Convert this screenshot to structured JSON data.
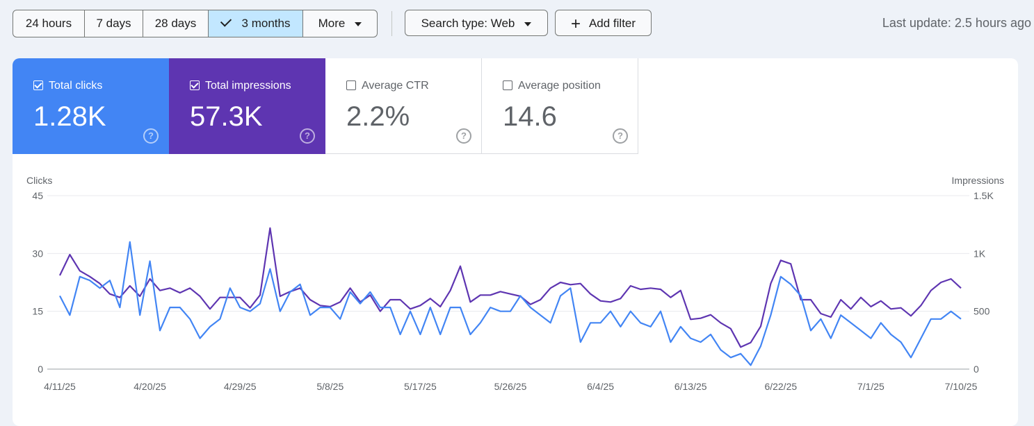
{
  "filters": {
    "ranges": [
      {
        "label": "24 hours",
        "selected": false
      },
      {
        "label": "7 days",
        "selected": false
      },
      {
        "label": "28 days",
        "selected": false
      },
      {
        "label": "3 months",
        "selected": true
      },
      {
        "label": "More",
        "selected": false
      }
    ],
    "search_type": "Search type: Web",
    "add_filter": "Add filter",
    "last_update": "Last update: 2.5 hours ago"
  },
  "metrics": [
    {
      "label": "Total clicks",
      "value": "1.28K",
      "checked": true,
      "color": "#4285f4"
    },
    {
      "label": "Total impressions",
      "value": "57.3K",
      "checked": true,
      "color": "#5e35b1"
    },
    {
      "label": "Average CTR",
      "value": "2.2%",
      "checked": false
    },
    {
      "label": "Average position",
      "value": "14.6",
      "checked": false
    }
  ],
  "chart_data": {
    "type": "line",
    "left_axis_title": "Clicks",
    "right_axis_title": "Impressions",
    "left_ticks": [
      "45",
      "30",
      "15",
      "0"
    ],
    "right_ticks": [
      "1.5K",
      "1K",
      "500",
      "0"
    ],
    "ylim_left": [
      0,
      45
    ],
    "ylim_right": [
      0,
      1500
    ],
    "x_tick_labels": [
      "4/11/25",
      "4/20/25",
      "4/29/25",
      "5/8/25",
      "5/17/25",
      "5/26/25",
      "6/4/25",
      "6/13/25",
      "6/22/25",
      "7/1/25",
      "7/10/25"
    ],
    "series": [
      {
        "name": "Clicks",
        "axis": "left",
        "color": "#4285f4",
        "values": [
          19,
          14,
          24,
          23,
          21,
          23,
          16,
          33,
          14,
          28,
          10,
          16,
          16,
          13,
          8,
          11,
          13,
          21,
          16,
          15,
          17,
          26,
          15,
          20,
          22,
          14,
          16,
          16,
          13,
          20,
          17,
          20,
          16,
          16,
          9,
          15,
          9,
          16,
          9,
          16,
          16,
          9,
          12,
          16,
          15,
          15,
          19,
          16,
          14,
          12,
          19,
          21,
          7,
          12,
          12,
          15,
          11,
          15,
          12,
          11,
          15,
          7,
          11,
          8,
          7,
          9,
          5,
          3,
          4,
          1,
          6,
          14,
          24,
          22,
          19,
          10,
          13,
          8,
          14,
          12,
          10,
          8,
          12,
          9,
          7,
          3,
          8,
          13,
          13,
          15,
          13
        ]
      },
      {
        "name": "Impressions",
        "axis": "right",
        "color": "#5e35b1",
        "values": [
          810,
          990,
          850,
          800,
          740,
          650,
          620,
          720,
          630,
          780,
          680,
          700,
          660,
          700,
          630,
          520,
          620,
          620,
          620,
          530,
          640,
          1220,
          630,
          670,
          700,
          600,
          550,
          540,
          580,
          700,
          580,
          640,
          500,
          600,
          600,
          520,
          550,
          610,
          540,
          680,
          890,
          580,
          640,
          640,
          670,
          650,
          630,
          560,
          600,
          700,
          750,
          730,
          740,
          650,
          590,
          580,
          610,
          720,
          690,
          700,
          690,
          620,
          680,
          430,
          440,
          470,
          400,
          350,
          190,
          230,
          370,
          740,
          940,
          910,
          600,
          600,
          480,
          450,
          600,
          520,
          620,
          540,
          590,
          520,
          530,
          460,
          550,
          680,
          750,
          780,
          700
        ]
      }
    ]
  }
}
